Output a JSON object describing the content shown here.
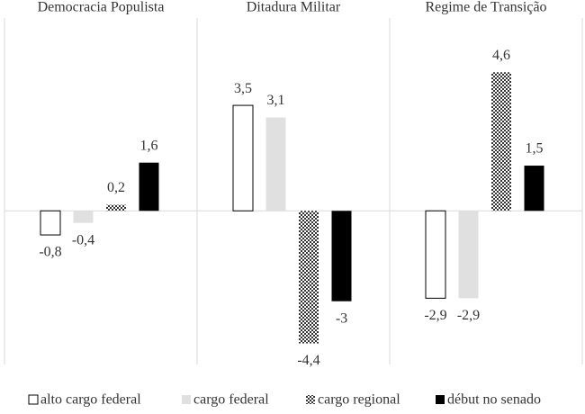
{
  "chart_data": {
    "type": "bar",
    "categories": [
      "Democracia Populista",
      "Ditadura Militar",
      "Regime de Transição"
    ],
    "ylim": [
      -5.1,
      6.4
    ],
    "series": [
      {
        "name": "alto cargo federal",
        "color": "#ffffff",
        "edgecolor": "#000000",
        "values": [
          -0.8,
          3.5,
          -2.9
        ],
        "value_labels": [
          "-0,8",
          "3,5",
          "-2,9"
        ]
      },
      {
        "name": "cargo federal",
        "color": "#e0e0e0",
        "values": [
          -0.4,
          3.1,
          -2.9
        ],
        "value_labels": [
          "-0,4",
          "3,1",
          "-2,9"
        ]
      },
      {
        "name": "cargo regional",
        "color": "#333333",
        "hatch": "checker",
        "values": [
          0.2,
          -4.4,
          4.6
        ],
        "value_labels": [
          "0,2",
          "-4,4",
          "4,6"
        ]
      },
      {
        "name": "début no senado",
        "color": "#000000",
        "values": [
          1.6,
          -3,
          1.5
        ],
        "value_labels": [
          "1,6",
          "-3",
          "1,5"
        ]
      }
    ]
  }
}
